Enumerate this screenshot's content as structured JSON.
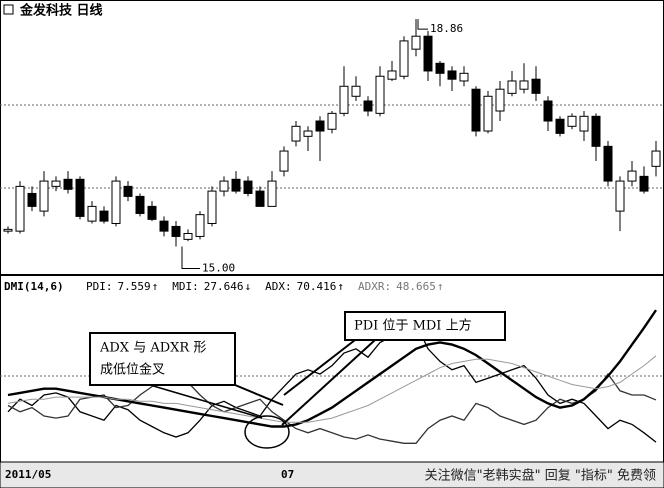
{
  "chart_data": [
    {
      "type": "candlestick",
      "title": "金发科技 日线",
      "categories": [
        "2011/05",
        null,
        null,
        null,
        null,
        null,
        null,
        null,
        null,
        null,
        null,
        null,
        null,
        null,
        null,
        null,
        null,
        null,
        null,
        null,
        null,
        null,
        null,
        "07",
        null,
        null,
        null,
        null,
        null,
        null,
        null,
        null,
        null,
        null,
        null,
        null,
        null,
        null,
        null,
        null,
        null,
        null,
        null,
        null,
        null,
        null,
        null,
        null,
        null,
        null,
        null,
        null,
        null,
        null,
        null
      ],
      "open": [
        15.26,
        15.26,
        15.9,
        15.6,
        16.02,
        16.14,
        16.14,
        15.43,
        15.6,
        15.39,
        16.02,
        15.85,
        15.68,
        15.43,
        15.34,
        15.12,
        15.17,
        15.39,
        15.94,
        16.14,
        16.11,
        15.94,
        15.68,
        16.28,
        16.79,
        16.87,
        17.13,
        16.99,
        17.26,
        17.55,
        17.47,
        17.26,
        17.84,
        17.89,
        18.35,
        18.57,
        18.11,
        17.98,
        17.81,
        17.67,
        16.96,
        17.3,
        17.6,
        17.67,
        17.84,
        17.47,
        17.16,
        17.04,
        16.96,
        17.21,
        16.7,
        15.6,
        16.11,
        16.19,
        16.36
      ],
      "high": [
        15.34,
        16.11,
        16.02,
        16.28,
        16.19,
        16.28,
        16.19,
        15.77,
        15.68,
        16.19,
        16.11,
        15.9,
        15.77,
        15.51,
        15.43,
        15.29,
        15.6,
        16.02,
        16.19,
        16.28,
        16.19,
        16.02,
        16.28,
        16.7,
        17.13,
        17.04,
        17.21,
        17.3,
        18.06,
        17.89,
        17.55,
        18.06,
        18.15,
        18.57,
        18.86,
        18.66,
        18.15,
        18.06,
        18.06,
        17.72,
        17.64,
        17.81,
        17.98,
        18.11,
        18.06,
        17.55,
        17.21,
        17.26,
        17.3,
        17.26,
        16.79,
        16.19,
        16.45,
        16.36,
        16.79
      ],
      "low": [
        15.22,
        15.22,
        15.6,
        15.51,
        15.94,
        15.9,
        15.46,
        15.39,
        15.39,
        15.34,
        15.77,
        15.51,
        15.43,
        15.17,
        15.0,
        15.09,
        15.12,
        15.34,
        15.85,
        15.9,
        15.85,
        15.68,
        15.68,
        16.19,
        16.7,
        16.62,
        16.45,
        16.92,
        17.21,
        17.47,
        17.21,
        17.21,
        17.81,
        17.84,
        18.23,
        17.81,
        17.72,
        17.64,
        17.72,
        16.87,
        16.92,
        17.13,
        17.55,
        17.6,
        17.47,
        16.96,
        16.87,
        16.99,
        16.79,
        16.45,
        16.02,
        15.26,
        16.02,
        15.9,
        16.19
      ],
      "close": [
        15.29,
        16.02,
        15.68,
        16.11,
        16.11,
        15.97,
        15.51,
        15.68,
        15.43,
        16.11,
        15.85,
        15.56,
        15.46,
        15.26,
        15.17,
        15.22,
        15.54,
        15.94,
        16.11,
        15.94,
        15.9,
        15.68,
        16.11,
        16.62,
        17.04,
        16.96,
        16.96,
        17.26,
        17.72,
        17.72,
        17.3,
        17.89,
        17.98,
        18.49,
        18.57,
        17.98,
        17.94,
        17.84,
        17.94,
        16.96,
        17.55,
        17.67,
        17.81,
        17.81,
        17.6,
        17.13,
        16.92,
        17.21,
        17.21,
        16.7,
        16.11,
        16.11,
        16.28,
        15.94,
        16.62
      ],
      "up_color": "#ffffff",
      "down_color": "#000000",
      "ylim": [
        14.6,
        19.1
      ],
      "annotations": [
        {
          "value": 18.86,
          "label": "18.86"
        },
        {
          "value": 15,
          "label": "15.00"
        }
      ]
    },
    {
      "type": "line",
      "indicator": "DMI(14,6)",
      "series": [
        {
          "name": "PDI:",
          "color": "#000000",
          "trend": "↑",
          "values": [
            22,
            28,
            25,
            30,
            31,
            29,
            22,
            20,
            18,
            25,
            23,
            18,
            15,
            12,
            10,
            12,
            18,
            25,
            27,
            24,
            22,
            20,
            28,
            34,
            40,
            42,
            40,
            44,
            50,
            52,
            48,
            55,
            58,
            62,
            64,
            52,
            46,
            42,
            44,
            36,
            38,
            40,
            42,
            44,
            38,
            30,
            26,
            28,
            26,
            20,
            14,
            18,
            16,
            12,
            7.559
          ]
        },
        {
          "name": "MDI:",
          "color": "#333333",
          "trend": "↓",
          "values": [
            25,
            22,
            24,
            20,
            19,
            20,
            28,
            29,
            30,
            24,
            25,
            30,
            34,
            38,
            40,
            36,
            30,
            25,
            22,
            24,
            26,
            28,
            22,
            18,
            14,
            12,
            14,
            12,
            10,
            9,
            11,
            9,
            8,
            7,
            7,
            14,
            18,
            20,
            18,
            26,
            24,
            20,
            18,
            16,
            18,
            24,
            28,
            26,
            28,
            32,
            40,
            32,
            30,
            30,
            27.646
          ]
        },
        {
          "name": "ADX:",
          "color": "#000000",
          "trend": "↑",
          "values": [
            30,
            31,
            32,
            33,
            33,
            32,
            31,
            30,
            29,
            28,
            27,
            26,
            25,
            24,
            23,
            22,
            21,
            20,
            19,
            18,
            17,
            16,
            15,
            15,
            16,
            18,
            21,
            24,
            28,
            32,
            36,
            40,
            44,
            48,
            52,
            54,
            55,
            54,
            52,
            49,
            45,
            41,
            37,
            33,
            29,
            26,
            24,
            25,
            28,
            33,
            39,
            46,
            54,
            62,
            70.416
          ]
        },
        {
          "name": "ADXR:",
          "color": "#999999",
          "trend": "↑",
          "values": [
            26,
            27,
            28,
            28,
            29,
            29,
            29,
            29,
            29,
            28,
            28,
            27,
            27,
            26,
            26,
            25,
            24,
            23,
            22,
            21,
            20,
            19,
            18,
            17,
            17,
            17,
            18,
            19,
            21,
            23,
            25,
            28,
            31,
            34,
            37,
            40,
            43,
            45,
            46,
            47,
            47,
            46,
            45,
            43,
            41,
            39,
            37,
            35,
            34,
            33,
            34,
            36,
            40,
            44,
            48.665
          ]
        }
      ],
      "ylim": [
        0,
        80
      ],
      "annotations": [
        {
          "lines": [
            "ADX 与 ADXR 形",
            "成低位金叉"
          ]
        },
        {
          "lines": [
            "PDI 位于 MDI 上方"
          ]
        }
      ]
    }
  ],
  "watermark": "关注微信\"老韩实盘\" 回复 \"指标\" 免费领"
}
